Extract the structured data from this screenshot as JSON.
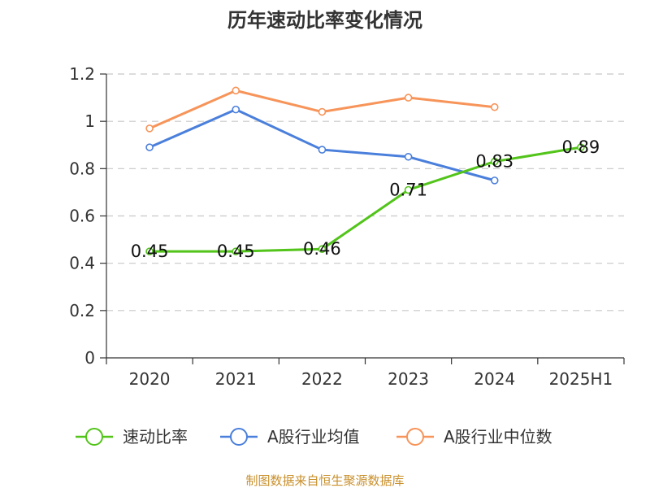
{
  "chart_data": {
    "type": "line",
    "title": "历年速动比率变化情况",
    "categories": [
      "2020",
      "2021",
      "2022",
      "2023",
      "2024",
      "2025H1"
    ],
    "ylim": [
      0,
      1.2
    ],
    "yticks": [
      "0",
      "0.2",
      "0.4",
      "0.6",
      "0.8",
      "1",
      "1.2"
    ],
    "grid": true,
    "legend_position": "bottom",
    "series": [
      {
        "name": "速动比率",
        "color": "#52c41a",
        "values": [
          0.45,
          0.45,
          0.46,
          0.71,
          0.83,
          0.89
        ],
        "labels": [
          "0.45",
          "0.45",
          "0.46",
          "0.71",
          "0.83",
          "0.89"
        ]
      },
      {
        "name": "A股行业均值",
        "color": "#4a7fdb",
        "values": [
          0.89,
          1.05,
          0.88,
          0.85,
          0.75,
          null
        ]
      },
      {
        "name": "A股行业中位数",
        "color": "#f79459",
        "values": [
          0.97,
          1.13,
          1.04,
          1.1,
          1.06,
          null
        ]
      }
    ]
  },
  "source": "制图数据来自恒生聚源数据库"
}
